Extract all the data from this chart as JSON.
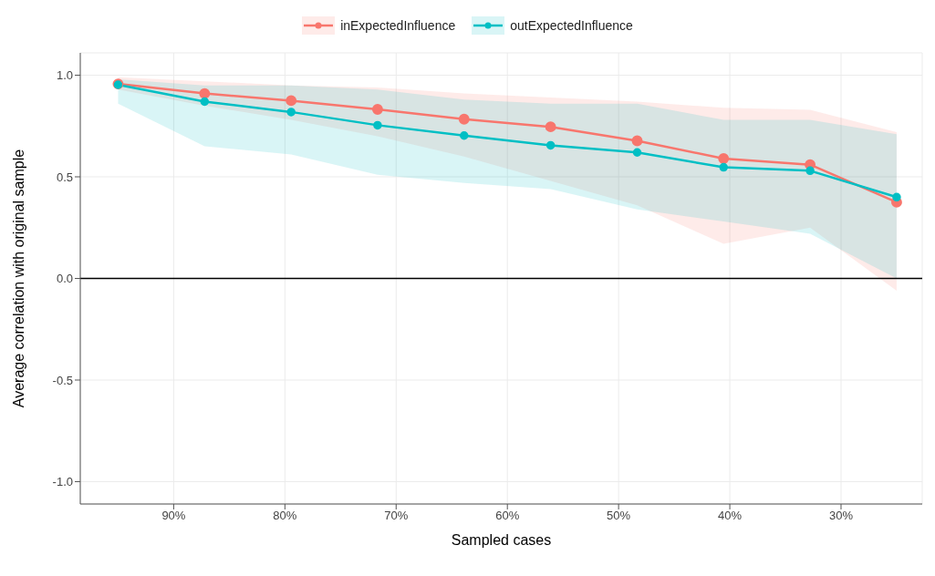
{
  "chart_data": {
    "type": "line",
    "xlabel": "Sampled cases",
    "ylabel": "Average correlation with original sample",
    "x": [
      95,
      87.22,
      79.44,
      71.67,
      63.89,
      56.11,
      48.33,
      40.56,
      32.78,
      25
    ],
    "series": [
      {
        "name": "inExpectedInfluence",
        "color": "#f8766d",
        "values": [
          0.957,
          0.91,
          0.875,
          0.832,
          0.784,
          0.746,
          0.677,
          0.59,
          0.56,
          0.375
        ],
        "lower": [
          0.93,
          0.85,
          0.78,
          0.7,
          0.6,
          0.48,
          0.36,
          0.17,
          0.25,
          -0.06
        ],
        "upper": [
          0.99,
          0.97,
          0.95,
          0.94,
          0.91,
          0.89,
          0.87,
          0.84,
          0.83,
          0.72
        ]
      },
      {
        "name": "outExpectedInfluence",
        "color": "#00bfc4",
        "values": [
          0.953,
          0.87,
          0.819,
          0.754,
          0.703,
          0.655,
          0.62,
          0.547,
          0.53,
          0.4
        ],
        "lower": [
          0.86,
          0.65,
          0.61,
          0.51,
          0.47,
          0.44,
          0.34,
          0.28,
          0.22,
          0.0
        ],
        "upper": [
          0.98,
          0.95,
          0.95,
          0.93,
          0.88,
          0.86,
          0.86,
          0.78,
          0.78,
          0.71
        ]
      }
    ],
    "xlim": [
      98.4,
      22.7
    ],
    "xticks": [
      {
        "value": 90,
        "label": "90%"
      },
      {
        "value": 80,
        "label": "80%"
      },
      {
        "value": 70,
        "label": "70%"
      },
      {
        "value": 60,
        "label": "60%"
      },
      {
        "value": 50,
        "label": "50%"
      },
      {
        "value": 40,
        "label": "40%"
      },
      {
        "value": 30,
        "label": "30%"
      }
    ],
    "ylim": [
      -1.11,
      1.11
    ],
    "yticks": [
      {
        "value": -1,
        "label": "-1.0"
      },
      {
        "value": -0.5,
        "label": "-0.5"
      },
      {
        "value": 0,
        "label": "0.0"
      },
      {
        "value": 0.5,
        "label": "0.5"
      },
      {
        "value": 1,
        "label": "1.0"
      }
    ],
    "ref_lines": [
      {
        "axis": "y",
        "value": 0,
        "color": "#000000"
      }
    ],
    "grid": true,
    "legend": "top",
    "marker": "circle",
    "line_style": "solid"
  }
}
